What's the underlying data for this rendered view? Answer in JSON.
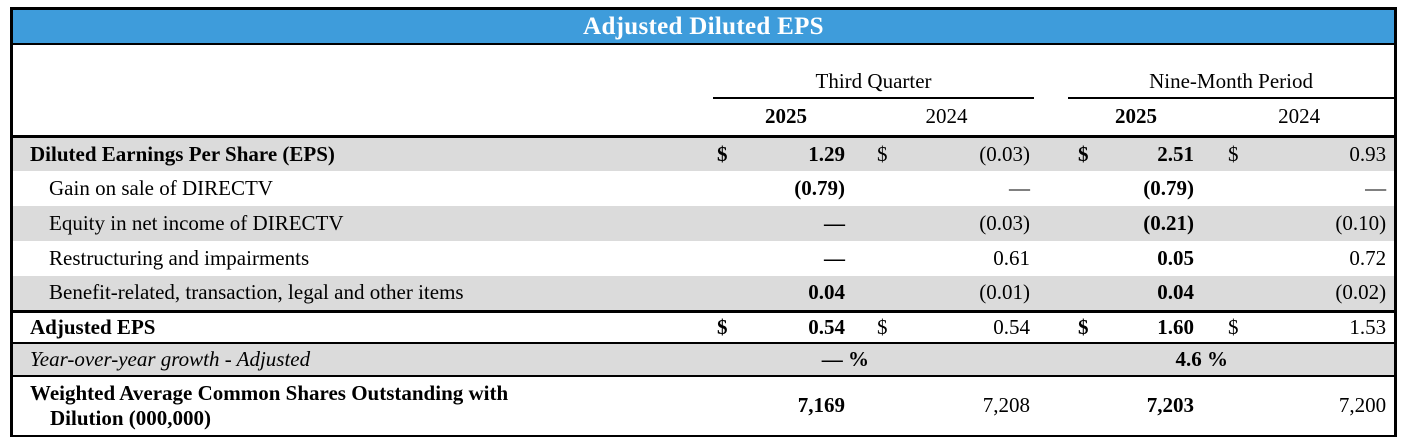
{
  "title": "Adjusted Diluted EPS",
  "colors": {
    "title_bar_background": "#3E9CDB",
    "title_text": "#FFFFFF",
    "stripe_gray": "#DBDBDB",
    "border_black": "#000000"
  },
  "header": {
    "third_quarter": "Third Quarter",
    "nine_month": "Nine-Month Period",
    "y2025": "2025",
    "y2024": "2024"
  },
  "rows": [
    {
      "label": "Diluted Earnings Per Share (EPS)",
      "cells": [
        {
          "d": "$",
          "v": "1.29"
        },
        {
          "d": "$",
          "v": "(0.03)"
        },
        {
          "d": "$",
          "v": "2.51"
        },
        {
          "d": "$",
          "v": "0.93"
        }
      ]
    },
    {
      "label": "Gain on sale of DIRECTV",
      "cells": [
        {
          "d": "",
          "v": "(0.79)"
        },
        {
          "d": "",
          "v": "—"
        },
        {
          "d": "",
          "v": "(0.79)"
        },
        {
          "d": "",
          "v": "—"
        }
      ]
    },
    {
      "label": "Equity in net income of DIRECTV",
      "cells": [
        {
          "d": "",
          "v": "—"
        },
        {
          "d": "",
          "v": "(0.03)"
        },
        {
          "d": "",
          "v": "(0.21)"
        },
        {
          "d": "",
          "v": "(0.10)"
        }
      ]
    },
    {
      "label": "Restructuring and impairments",
      "cells": [
        {
          "d": "",
          "v": "—"
        },
        {
          "d": "",
          "v": "0.61"
        },
        {
          "d": "",
          "v": "0.05"
        },
        {
          "d": "",
          "v": "0.72"
        }
      ]
    },
    {
      "label": "Benefit-related, transaction, legal and other items",
      "cells": [
        {
          "d": "",
          "v": "0.04"
        },
        {
          "d": "",
          "v": "(0.01)"
        },
        {
          "d": "",
          "v": "0.04"
        },
        {
          "d": "",
          "v": "(0.02)"
        }
      ]
    },
    {
      "label": "Adjusted EPS",
      "cells": [
        {
          "d": "$",
          "v": "0.54"
        },
        {
          "d": "$",
          "v": "0.54"
        },
        {
          "d": "$",
          "v": "1.60"
        },
        {
          "d": "$",
          "v": "1.53"
        }
      ]
    }
  ],
  "growth_row": {
    "label": "Year-over-year growth - Adjusted",
    "third_quarter": "— %",
    "nine_month": "4.6 %"
  },
  "shares_row": {
    "label_line1": "Weighted Average Common Shares Outstanding with",
    "label_line2": "Dilution (000,000)",
    "values": [
      "7,169",
      "7,208",
      "7,203",
      "7,200"
    ]
  }
}
